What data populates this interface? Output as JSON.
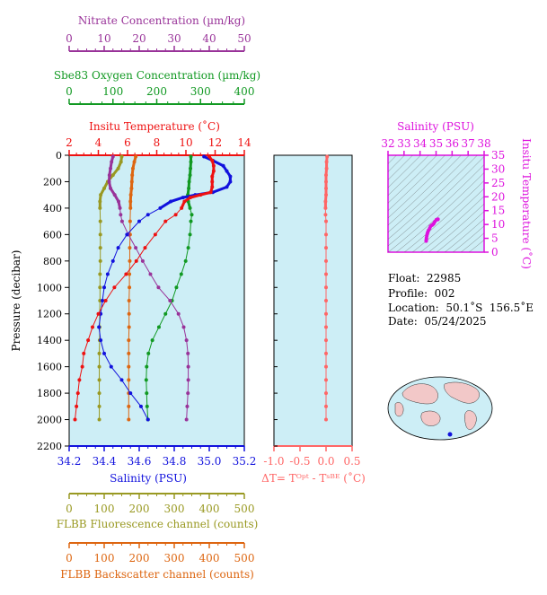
{
  "colors": {
    "plot_bg": "#cdeef6",
    "nitrate": "#993399",
    "oxygen": "#119922",
    "temperature": "#ee1111",
    "salinity": "#1111dd",
    "fluorescence": "#999922",
    "backscatter": "#dd6611",
    "delta_t": "#ff6666",
    "ts_axis": "#dd11dd"
  },
  "info": {
    "float": "Float:  22985",
    "profile": "Profile:  002",
    "location": "Location:  50.1˚S  156.5˚E",
    "date": "Date:  05/24/2025"
  },
  "chart_data": [
    {
      "type": "line",
      "panel": "main-profile",
      "y_axis": {
        "label": "Pressure (decibar)",
        "range": [
          0,
          2200
        ],
        "inverted": true,
        "ticks": [
          "0",
          "200",
          "400",
          "600",
          "800",
          "1000",
          "1200",
          "1400",
          "1600",
          "1800",
          "2000",
          "2200"
        ]
      },
      "axes": {
        "nitrate": {
          "label": "Nitrate Concentration (µm/kg)",
          "range": [
            0,
            50
          ],
          "ticks": [
            "0",
            "10",
            "20",
            "30",
            "40",
            "50"
          ]
        },
        "oxygen": {
          "label": "Sbe83 Oxygen Concentration (µm/kg)",
          "range": [
            0,
            400
          ],
          "ticks": [
            "0",
            "100",
            "200",
            "300",
            "400"
          ]
        },
        "temperature": {
          "label": "Insitu Temperature (˚C)",
          "range": [
            2,
            14
          ],
          "ticks": [
            "2",
            "4",
            "6",
            "8",
            "10",
            "12",
            "14"
          ]
        },
        "salinity": {
          "label": "Salinity (PSU)",
          "range": [
            34.2,
            35.2
          ],
          "ticks": [
            "34.2",
            "34.4",
            "34.6",
            "34.8",
            "35.0",
            "35.2"
          ]
        },
        "fluorescence": {
          "label": "FLBB Fluorescence channel (counts)",
          "range": [
            0,
            500
          ],
          "ticks": [
            "0",
            "100",
            "200",
            "300",
            "400",
            "500"
          ]
        },
        "backscatter": {
          "label": "FLBB Backscatter channel (counts)",
          "range": [
            0,
            500
          ],
          "ticks": [
            "0",
            "100",
            "200",
            "300",
            "400",
            "500"
          ]
        }
      },
      "series": [
        {
          "name": "Insitu Temperature",
          "axis": "temperature",
          "pressure": [
            10,
            40,
            80,
            120,
            160,
            200,
            240,
            280,
            300,
            320,
            350,
            400,
            450,
            500,
            600,
            700,
            800,
            900,
            1000,
            1100,
            1200,
            1300,
            1400,
            1500,
            1600,
            1700,
            1800,
            1900,
            2000
          ],
          "values": [
            11.6,
            11.8,
            11.9,
            11.9,
            11.8,
            11.8,
            11.8,
            11.7,
            11.0,
            10.3,
            9.9,
            9.7,
            9.3,
            8.6,
            7.9,
            7.2,
            6.6,
            5.9,
            5.1,
            4.5,
            4.0,
            3.6,
            3.3,
            3.0,
            2.9,
            2.7,
            2.6,
            2.5,
            2.4
          ]
        },
        {
          "name": "Salinity",
          "axis": "salinity",
          "pressure": [
            10,
            40,
            80,
            120,
            160,
            200,
            240,
            280,
            300,
            320,
            350,
            400,
            450,
            500,
            600,
            700,
            800,
            900,
            1000,
            1100,
            1200,
            1300,
            1400,
            1500,
            1600,
            1700,
            1800,
            1900,
            2000
          ],
          "values": [
            34.97,
            35.02,
            35.08,
            35.1,
            35.12,
            35.12,
            35.1,
            35.02,
            34.92,
            34.85,
            34.78,
            34.72,
            34.65,
            34.6,
            34.53,
            34.48,
            34.45,
            34.42,
            34.4,
            34.39,
            34.38,
            34.37,
            34.38,
            34.4,
            34.44,
            34.5,
            34.55,
            34.61,
            34.65
          ]
        },
        {
          "name": "Nitrate",
          "axis": "nitrate",
          "pressure": [
            10,
            50,
            100,
            150,
            200,
            250,
            300,
            350,
            400,
            450,
            500,
            600,
            700,
            800,
            900,
            1000,
            1100,
            1200,
            1300,
            1400,
            1500,
            1600,
            1700,
            1800,
            1900,
            2000
          ],
          "values": [
            12.5,
            12.1,
            11.8,
            11.5,
            11.4,
            11.8,
            13.0,
            14.1,
            14.5,
            14.7,
            15.1,
            16.9,
            19.0,
            21.0,
            23.2,
            25.5,
            28.8,
            31.2,
            32.7,
            33.5,
            33.9,
            34.0,
            34.0,
            33.9,
            33.7,
            33.5
          ]
        },
        {
          "name": "Sbe83 Oxygen",
          "axis": "oxygen",
          "pressure": [
            10,
            50,
            100,
            150,
            200,
            250,
            300,
            350,
            400,
            450,
            500,
            600,
            700,
            800,
            900,
            1000,
            1100,
            1200,
            1300,
            1400,
            1500,
            1600,
            1700,
            1800,
            1900,
            2000
          ],
          "values": [
            278,
            278,
            277,
            276,
            274,
            273,
            271,
            272,
            276,
            280,
            278,
            276,
            272,
            266,
            256,
            245,
            235,
            220,
            205,
            190,
            181,
            177,
            176,
            177,
            178,
            180
          ]
        },
        {
          "name": "FLBB Fluorescence",
          "axis": "fluorescence",
          "pressure": [
            10,
            50,
            100,
            150,
            200,
            250,
            300,
            350,
            400,
            500,
            600,
            700,
            800,
            900,
            1000,
            1100,
            1200,
            1300,
            1400,
            1500,
            1600,
            1700,
            1800,
            1900,
            2000
          ],
          "values": [
            150,
            148,
            140,
            125,
            110,
            100,
            90,
            88,
            88,
            89,
            89,
            89,
            89,
            88,
            88,
            88,
            87,
            87,
            87,
            86,
            86,
            86,
            86,
            86,
            86
          ]
        },
        {
          "name": "FLBB Backscatter",
          "axis": "backscatter",
          "pressure": [
            10,
            50,
            100,
            150,
            200,
            250,
            300,
            350,
            400,
            500,
            600,
            700,
            800,
            900,
            1000,
            1100,
            1200,
            1300,
            1400,
            1500,
            1600,
            1700,
            1800,
            1900,
            2000
          ],
          "values": [
            190,
            186,
            182,
            180,
            179,
            178,
            176,
            175,
            175,
            174,
            174,
            173,
            173,
            172,
            172,
            171,
            171,
            171,
            170,
            170,
            170,
            170,
            170,
            170,
            170
          ]
        }
      ]
    },
    {
      "type": "line",
      "panel": "delta-t",
      "xlabel": "ΔT= Tᴼᵖᵗ - Tˢᴮᴱ (˚C)",
      "x_range": [
        -1.0,
        0.5
      ],
      "x_ticks": [
        "-1.0",
        "-0.5",
        "0.0",
        "0.5"
      ],
      "y_range": [
        0,
        2200
      ],
      "pressure": [
        10,
        50,
        100,
        150,
        200,
        250,
        300,
        350,
        400,
        450,
        500,
        600,
        700,
        800,
        900,
        1000,
        1100,
        1200,
        1300,
        1400,
        1500,
        1600,
        1700,
        1800,
        1900,
        2000
      ],
      "values": [
        0.02,
        0.01,
        0.01,
        0.0,
        0.0,
        0.0,
        0.0,
        -0.01,
        -0.01,
        -0.01,
        0.0,
        0.0,
        0.0,
        0.0,
        0.0,
        0.0,
        0.0,
        0.0,
        0.0,
        0.0,
        0.0,
        0.0,
        0.0,
        0.0,
        0.0,
        0.0
      ]
    },
    {
      "type": "scatter",
      "panel": "ts-diagram",
      "xlabel": "Salinity (PSU)",
      "ylabel": "Insitu Temperature (˚C)",
      "x_range": [
        32,
        38
      ],
      "y_range": [
        0,
        35
      ],
      "x_ticks": [
        "32",
        "33",
        "34",
        "35",
        "36",
        "37",
        "38"
      ],
      "y_ticks": [
        "0",
        "5",
        "10",
        "15",
        "20",
        "25",
        "30",
        "35"
      ],
      "salinity": [
        35.12,
        35.1,
        35.02,
        34.92,
        34.85,
        34.78,
        34.72,
        34.65,
        34.6,
        34.53,
        34.48,
        34.45,
        34.42,
        34.4,
        34.39,
        34.38
      ],
      "temperature": [
        11.9,
        11.8,
        11.7,
        11.0,
        10.3,
        9.9,
        9.7,
        9.3,
        8.6,
        7.9,
        7.2,
        6.6,
        5.9,
        5.1,
        4.5,
        4.0
      ]
    }
  ]
}
